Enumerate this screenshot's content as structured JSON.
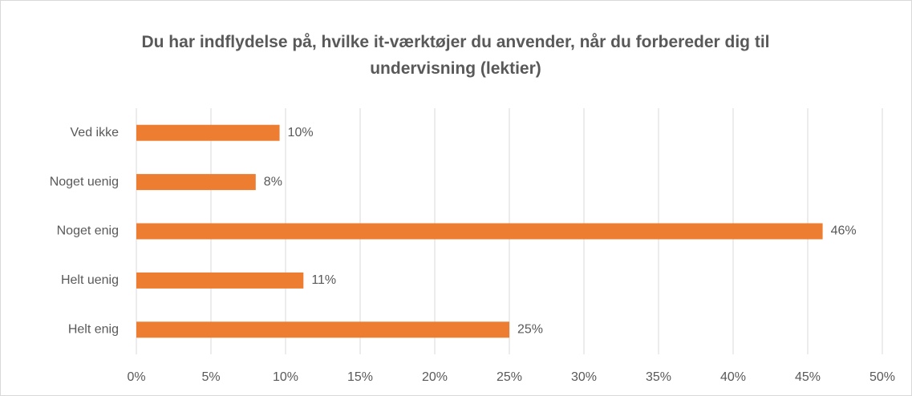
{
  "chart_data": {
    "type": "barh",
    "title": "Du har indflydelse på, hvilke it-værktøjer du anvender, når du forbereder dig til undervisning (lektier)",
    "categories": [
      "Ved ikke",
      "Noget uenig",
      "Noget enig",
      "Helt uenig",
      "Helt enig"
    ],
    "values": [
      9.6,
      8,
      46,
      11.2,
      25
    ],
    "value_labels": [
      "10%",
      "8%",
      "46%",
      "11%",
      "25%"
    ],
    "color": "#ed7d31",
    "xlim": [
      0,
      50
    ],
    "xticks": [
      {
        "value": 0,
        "label": "0%"
      },
      {
        "value": 5,
        "label": "5%"
      },
      {
        "value": 10,
        "label": "10%"
      },
      {
        "value": 15,
        "label": "15%"
      },
      {
        "value": 20,
        "label": "20%"
      },
      {
        "value": 25,
        "label": "25%"
      },
      {
        "value": 30,
        "label": "30%"
      },
      {
        "value": 35,
        "label": "35%"
      },
      {
        "value": 40,
        "label": "40%"
      },
      {
        "value": 45,
        "label": "45%"
      },
      {
        "value": 50,
        "label": "50%"
      }
    ],
    "grid": true
  }
}
